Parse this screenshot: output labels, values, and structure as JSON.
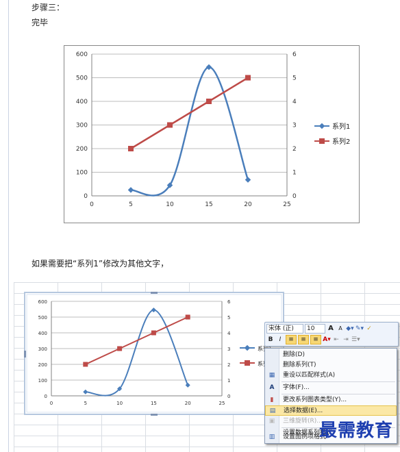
{
  "step_title": "步骤三：",
  "step_done": "完毕",
  "instruction": "如果需要把“系列1”修改为其他文字，",
  "chart1": {
    "y_left_ticks": [
      "600",
      "500",
      "400",
      "300",
      "200",
      "100",
      "0"
    ],
    "y_right_ticks": [
      "6",
      "5",
      "4",
      "3",
      "2",
      "1",
      "0"
    ],
    "x_ticks": [
      "0",
      "5",
      "10",
      "15",
      "20",
      "25"
    ],
    "legend": [
      "系列1",
      "系列2"
    ]
  },
  "chart2": {
    "y_left_ticks": [
      "600",
      "500",
      "400",
      "300",
      "200",
      "100",
      "0"
    ],
    "y_right_ticks": [
      "6",
      "5",
      "4",
      "3",
      "2",
      "1",
      "0"
    ],
    "x_ticks": [
      "0",
      "5",
      "10",
      "15",
      "20",
      "25"
    ],
    "legend": [
      "系列1",
      "系列2"
    ]
  },
  "chart_data": [
    {
      "type": "line",
      "x": [
        5,
        10,
        15,
        20
      ],
      "series": [
        {
          "name": "系列1",
          "values": [
            25,
            45,
            545,
            68
          ],
          "axis": "left",
          "color": "#4a7ebb",
          "smooth": true
        },
        {
          "name": "系列2",
          "values": [
            2,
            3,
            4,
            5
          ],
          "axis": "right",
          "color": "#be4b48"
        }
      ],
      "xlim": [
        0,
        25
      ],
      "ylim": [
        0,
        600
      ],
      "y2lim": [
        0,
        6
      ],
      "grid": true,
      "legend_position": "right"
    },
    {
      "type": "line",
      "x": [
        5,
        10,
        15,
        20
      ],
      "series": [
        {
          "name": "系列1",
          "values": [
            25,
            45,
            545,
            68
          ],
          "axis": "left",
          "color": "#4a7ebb",
          "smooth": true
        },
        {
          "name": "系列2",
          "values": [
            2,
            3,
            4,
            5
          ],
          "axis": "right",
          "color": "#be4b48"
        }
      ],
      "xlim": [
        0,
        25
      ],
      "ylim": [
        0,
        600
      ],
      "y2lim": [
        0,
        6
      ],
      "grid": true,
      "legend_position": "right"
    }
  ],
  "mini_toolbar": {
    "font_name": "宋体 (正)",
    "font_size": "10",
    "grow_font": "A",
    "shrink_font": "A",
    "bold": "B",
    "italic": "I"
  },
  "context_menu": {
    "items": [
      {
        "label": "删除(D)",
        "icon": "none"
      },
      {
        "label": "删除系列(T)",
        "icon": "none"
      },
      {
        "label": "重设以匹配样式(A)",
        "icon": "reset-style-icon"
      },
      {
        "label": "字体(F)...",
        "icon": "font-icon"
      },
      {
        "label": "更改系列图表类型(Y)...",
        "icon": "chart-type-icon"
      },
      {
        "label": "选择数据(E)...",
        "icon": "select-data-icon"
      },
      {
        "label": "三维旋转(R)...",
        "icon": "rotate-3d-icon"
      },
      {
        "label": "设置数据系列格式",
        "icon": "none"
      },
      {
        "label": "设置图例项格式",
        "icon": "format-legend-icon"
      }
    ]
  },
  "legend_cut_label": "系列",
  "watermark": "最需教育",
  "colors": {
    "series1": "#4a7ebb",
    "series2": "#be4b48",
    "highlight": "#fbe8a6"
  }
}
